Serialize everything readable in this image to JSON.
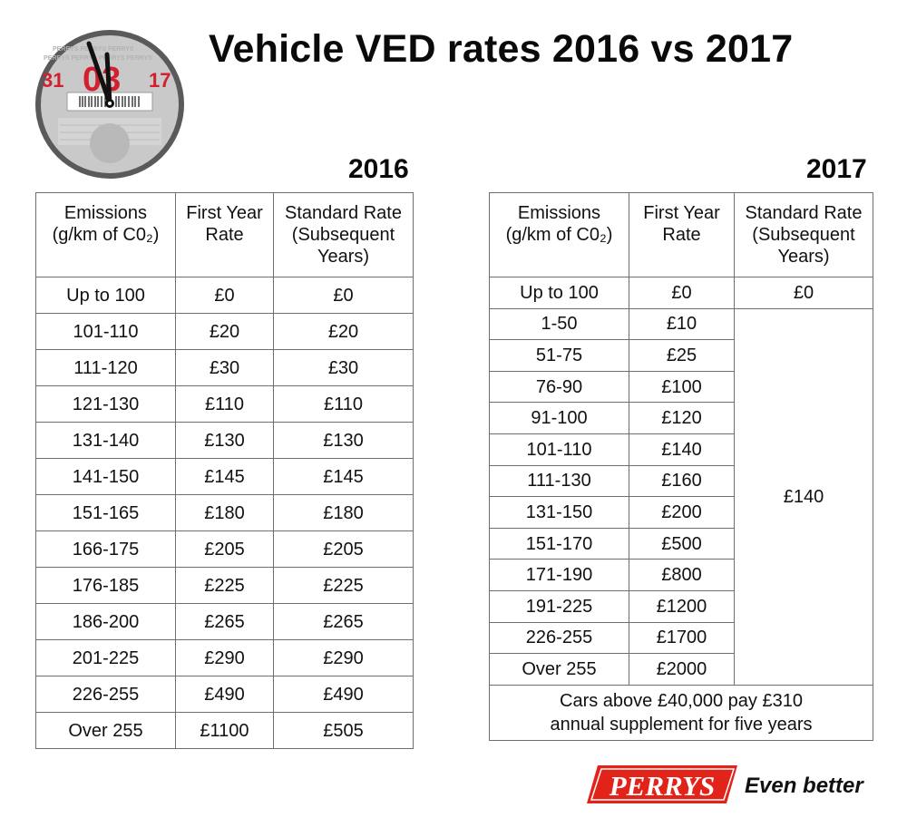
{
  "title": "Vehicle VED rates 2016 vs 2017",
  "badge": {
    "left_text": "31",
    "center_text": "03",
    "right_text": "17",
    "brand_text": "PERRYS",
    "accent_color": "#d32030",
    "face_color": "#c8c8c8",
    "rim_color": "#555555",
    "icon": "tax-disc-clock-icon"
  },
  "t2016": {
    "year": "2016",
    "headers": [
      "Emissions\n(g/km of C0₂)",
      "First Year\nRate",
      "Standard Rate\n(Subsequent\nYears)"
    ],
    "rows": [
      [
        "Up to 100",
        "£0",
        "£0"
      ],
      [
        "101-110",
        "£20",
        "£20"
      ],
      [
        "111-120",
        "£30",
        "£30"
      ],
      [
        "121-130",
        "£110",
        "£110"
      ],
      [
        "131-140",
        "£130",
        "£130"
      ],
      [
        "141-150",
        "£145",
        "£145"
      ],
      [
        "151-165",
        "£180",
        "£180"
      ],
      [
        "166-175",
        "£205",
        "£205"
      ],
      [
        "176-185",
        "£225",
        "£225"
      ],
      [
        "186-200",
        "£265",
        "£265"
      ],
      [
        "201-225",
        "£290",
        "£290"
      ],
      [
        "226-255",
        "£490",
        "£490"
      ],
      [
        "Over 255",
        "£1100",
        "£505"
      ]
    ]
  },
  "t2017": {
    "year": "2017",
    "headers": [
      "Emissions\n(g/km of C0₂)",
      "First Year\nRate",
      "Standard Rate\n(Subsequent\nYears)"
    ],
    "first_row": [
      "Up to 100",
      "£0",
      "£0"
    ],
    "rows": [
      [
        "1-50",
        "£10"
      ],
      [
        "51-75",
        "£25"
      ],
      [
        "76-90",
        "£100"
      ],
      [
        "91-100",
        "£120"
      ],
      [
        "101-110",
        "£140"
      ],
      [
        "111-130",
        "£160"
      ],
      [
        "131-150",
        "£200"
      ],
      [
        "151-170",
        "£500"
      ],
      [
        "171-190",
        "£800"
      ],
      [
        "191-225",
        "£1200"
      ],
      [
        "226-255",
        "£1700"
      ],
      [
        "Over 255",
        "£2000"
      ]
    ],
    "standard_rate": "£140",
    "note_line1": "Cars above £40,000 pay £310",
    "note_line2": "annual supplement for five years"
  },
  "logo": {
    "brand": "PERRYS",
    "tagline": "Even better",
    "brand_color": "#e2231a",
    "icon": "perrys-logo"
  }
}
